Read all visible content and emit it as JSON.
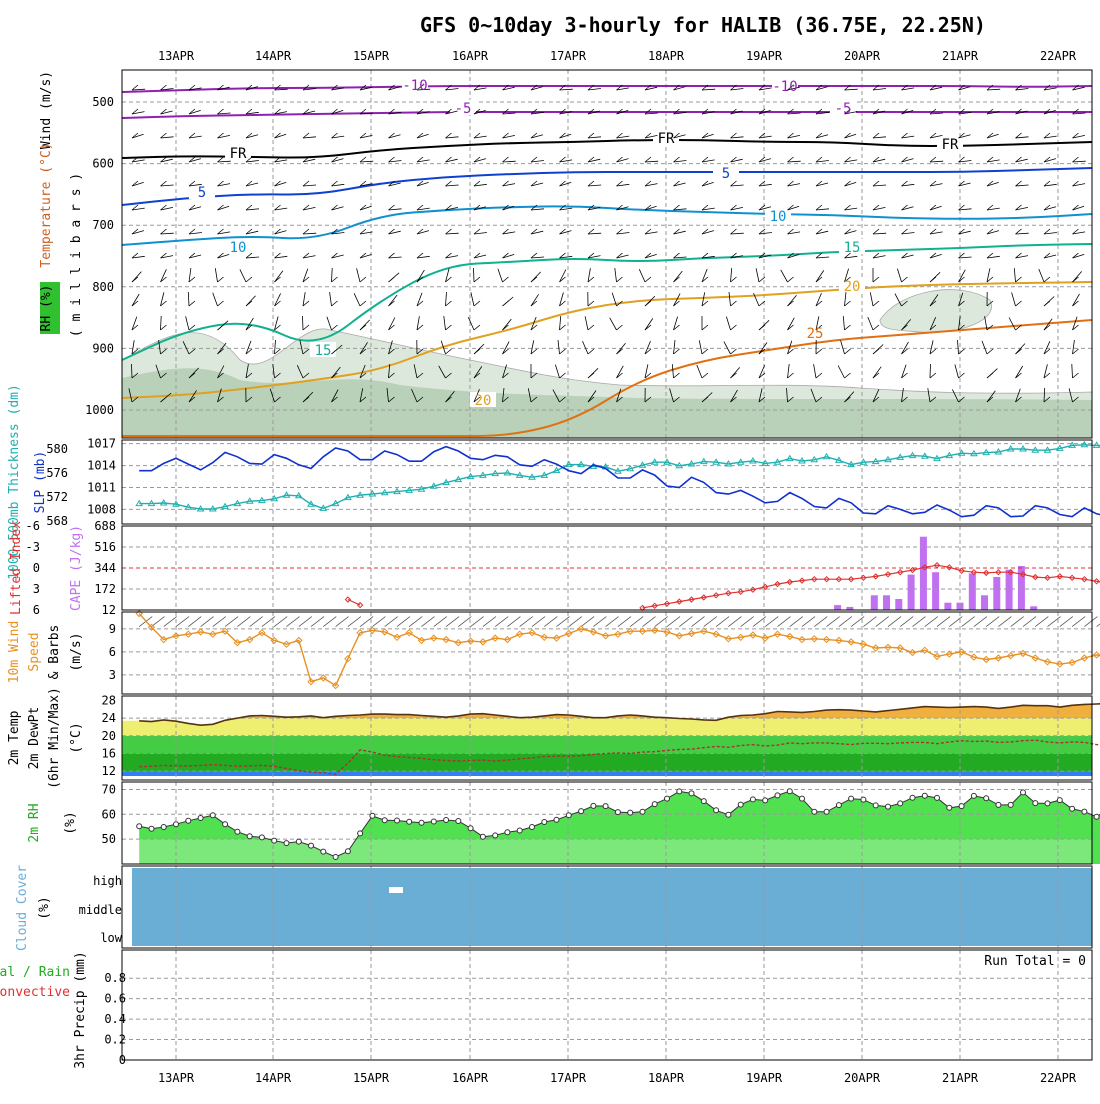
{
  "title": "GFS 0~10day 3-hourly for HALIB (36.75E, 22.25N)",
  "dates": [
    "13APR",
    "14APR",
    "15APR",
    "16APR",
    "17APR",
    "18APR",
    "19APR",
    "20APR",
    "21APR",
    "22APR"
  ],
  "colors": {
    "grid": "#9a9a9a",
    "slp": "#1030d0",
    "thickness": "#20b0b0",
    "lifted": "#e03030",
    "cape": "#c070f0",
    "wind": "#e89020",
    "rh_fill": "#50e050",
    "rh_fill_high": "#00e000",
    "cloud": "#6aaed6",
    "temp_fill": "#e89030"
  },
  "panels": {
    "upper": {
      "ylabel_wind": "Wind (m/s)",
      "ylabel_temp": "Temperature (°C)",
      "ylabel_rh": "RH (%)",
      "ylabel_mb": "( m i l l i b a r s )",
      "yticks": [
        "500",
        "600",
        "700",
        "800",
        "900",
        "1000"
      ],
      "contour_labels": [
        {
          "text": "-10",
          "color": "#9020b0"
        },
        {
          "text": "-10",
          "color": "#9020b0"
        },
        {
          "text": "-5",
          "color": "#9020b0"
        },
        {
          "text": "-5",
          "color": "#9020b0"
        },
        {
          "text": "FR",
          "color": "#000000"
        },
        {
          "text": "FR",
          "color": "#000000"
        },
        {
          "text": "FR",
          "color": "#000000"
        },
        {
          "text": "5",
          "color": "#1040d0"
        },
        {
          "text": "5",
          "color": "#1040d0"
        },
        {
          "text": "10",
          "color": "#1090d0"
        },
        {
          "text": "10",
          "color": "#1090d0"
        },
        {
          "text": "15",
          "color": "#10b090"
        },
        {
          "text": "15",
          "color": "#10b090"
        },
        {
          "text": "20",
          "color": "#e0a020"
        },
        {
          "text": "20",
          "color": "#e0a020"
        },
        {
          "text": "25",
          "color": "#e07010"
        }
      ]
    },
    "slp": {
      "ylabel_thk": "1000-500mb Thickness (dm)",
      "ylabel_slp": "SLP (mb)",
      "thk_ticks": [
        "580",
        "576",
        "572",
        "568"
      ],
      "slp_ticks": [
        "1017",
        "1014",
        "1011",
        "1008"
      ]
    },
    "cape": {
      "ylabel_li": "Lifted Index",
      "ylabel_cape": "CAPE (J/kg)",
      "li_ticks": [
        "-6",
        "-3",
        "0",
        "3",
        "6"
      ],
      "cape_ticks": [
        "688",
        "516",
        "344",
        "172",
        "12"
      ]
    },
    "wind": {
      "ylabel_1": "10m Wind",
      "ylabel_2": "Speed",
      "ylabel_3": "& Barbs",
      "ylabel_4": "(m/s)",
      "yticks": [
        "9",
        "6",
        "3"
      ]
    },
    "temp": {
      "ylabel_1": "2m Temp",
      "ylabel_2": "2m DewPt",
      "ylabel_3": "(6hr Min/Max)",
      "ylabel_4": "(°C)",
      "yticks": [
        "28",
        "24",
        "20",
        "16",
        "12"
      ]
    },
    "rh": {
      "ylabel": "2m RH",
      "yunit": "(%)",
      "yticks": [
        "70",
        "60",
        "50"
      ]
    },
    "cloud": {
      "ylabel": "Cloud Cover",
      "yunit": "(%)",
      "yticks": [
        "high",
        "middle",
        "low"
      ]
    },
    "precip": {
      "ylabel_1": "Total / Rain",
      "ylabel_2": "Convective",
      "ylabel_3": "3hr Precip (mm)",
      "yticks": [
        "0.8",
        "0.6",
        "0.4",
        "0.2",
        "0"
      ],
      "run_total": "Run Total = 0"
    }
  },
  "chart_data": {
    "type": "line",
    "x_start": "12APR 15Z",
    "x_step_hours": 3,
    "slp_mb": [
      1013.3,
      1013.3,
      1014.3,
      1015.0,
      1014.2,
      1013.4,
      1014.4,
      1015.8,
      1015.2,
      1014.3,
      1014.2,
      1015.5,
      1015.0,
      1014.1,
      1013.6,
      1015.2,
      1016.4,
      1016.0,
      1014.8,
      1014.8,
      1016.0,
      1015.5,
      1014.6,
      1014.6,
      1015.9,
      1016.6,
      1016.0,
      1015.0,
      1014.8,
      1015.4,
      1015.2,
      1014.1,
      1013.9,
      1014.8,
      1014.2,
      1013.3,
      1012.9,
      1014.1,
      1013.6,
      1012.3,
      1012.3,
      1013.4,
      1012.7,
      1011.2,
      1011.0,
      1012.4,
      1011.7,
      1010.3,
      1010.1,
      1010.6,
      1009.8,
      1008.9,
      1009.1,
      1010.3,
      1009.5,
      1008.4,
      1008.2,
      1009.5,
      1008.9,
      1007.5,
      1007.4,
      1008.5,
      1008.0,
      1007.4,
      1007.6,
      1008.6,
      1007.9,
      1007.0,
      1007.2,
      1008.5,
      1008.2,
      1007.0,
      1007.1,
      1008.5,
      1008.2,
      1007.3,
      1007.0,
      1008.2,
      1007.4,
      1007.0,
      1008.2
    ],
    "thickness_dm": [
      570.9,
      570.9,
      571.0,
      570.8,
      570.3,
      570.0,
      570.0,
      570.4,
      570.9,
      571.3,
      571.4,
      571.7,
      572.3,
      572.2,
      570.8,
      570.1,
      570.9,
      571.9,
      572.3,
      572.5,
      572.7,
      572.9,
      573.1,
      573.3,
      573.8,
      574.4,
      574.9,
      575.4,
      575.6,
      575.9,
      576.0,
      575.6,
      575.3,
      575.6,
      576.4,
      577.4,
      577.4,
      577.1,
      577.0,
      576.3,
      576.7,
      577.3,
      577.8,
      577.8,
      577.2,
      577.5,
      577.9,
      577.8,
      577.5,
      577.8,
      578.0,
      577.6,
      577.8,
      578.4,
      578.0,
      578.2,
      578.7,
      578.1,
      577.4,
      577.8,
      577.9,
      578.2,
      578.6,
      578.9,
      578.8,
      578.4,
      578.9,
      579.3,
      579.2,
      579.4,
      579.5,
      580.0,
      580.0,
      579.8,
      579.8,
      580.1,
      580.6,
      580.7,
      580.6,
      580.5,
      580.2
    ],
    "lifted_index": [
      7.6,
      7.6,
      7.6,
      7.6,
      7.6,
      7.6,
      7.6,
      7.6,
      7.6,
      7.6,
      7.6,
      7.6,
      7.6,
      7.6,
      7.6,
      7.6,
      7.6,
      4.5,
      5.3,
      7.6,
      7.6,
      7.6,
      7.6,
      7.6,
      7.6,
      7.6,
      7.6,
      7.6,
      7.6,
      7.6,
      7.6,
      7.6,
      7.6,
      7.6,
      7.6,
      7.6,
      7.6,
      7.6,
      7.6,
      7.6,
      7.6,
      5.7,
      5.4,
      5.1,
      4.8,
      4.5,
      4.2,
      3.9,
      3.6,
      3.4,
      3.1,
      2.7,
      2.3,
      2.0,
      1.8,
      1.6,
      1.6,
      1.6,
      1.6,
      1.4,
      1.2,
      0.9,
      0.6,
      0.3,
      -0.1,
      -0.4,
      -0.1,
      0.4,
      0.6,
      0.7,
      0.6,
      0.6,
      0.9,
      1.3,
      1.4,
      1.2,
      1.4,
      1.6,
      1.9,
      2.2,
      2.0
    ],
    "cape_jkg": [
      0,
      0,
      0,
      0,
      0,
      0,
      0,
      0,
      0,
      0,
      0,
      0,
      0,
      0,
      0,
      0,
      0,
      0,
      0,
      0,
      0,
      0,
      0,
      0,
      0,
      0,
      0,
      0,
      0,
      0,
      0,
      0,
      0,
      0,
      0,
      0,
      0,
      0,
      0,
      0,
      0,
      0,
      0,
      0,
      0,
      0,
      0,
      0,
      0,
      0,
      0,
      0,
      0,
      0,
      0,
      0,
      0,
      0,
      0,
      0,
      0,
      0,
      0,
      0,
      0,
      0,
      0,
      0,
      0,
      0,
      0,
      0,
      0,
      0,
      60,
      40,
      0,
      0,
      0,
      0,
      0
    ],
    "wind_speed_ms": [
      11.0,
      9.2,
      7.6,
      8.1,
      8.3,
      8.6,
      8.3,
      8.7,
      7.2,
      7.6,
      8.5,
      7.5,
      7.0,
      7.5,
      2.1,
      2.6,
      1.6,
      5.1,
      8.5,
      8.8,
      8.6,
      7.9,
      8.5,
      7.5,
      7.8,
      7.6,
      7.2,
      7.4,
      7.3,
      7.8,
      7.6,
      8.3,
      8.5,
      7.9,
      7.8,
      8.4,
      9.0,
      8.6,
      8.1,
      8.3,
      8.7,
      8.7,
      8.8,
      8.6,
      8.1,
      8.4,
      8.7,
      8.3,
      7.7,
      7.9,
      8.2,
      7.8,
      8.3,
      8.0,
      7.6,
      7.7,
      7.6,
      7.5,
      7.3,
      7.0,
      6.5,
      6.6,
      6.5,
      5.9,
      6.2,
      5.4,
      5.7,
      6.0,
      5.3,
      5.0,
      5.2,
      5.5,
      5.8,
      5.2,
      4.7,
      4.4,
      4.6,
      5.2,
      5.6,
      5.2,
      5.7
    ],
    "temp_c": [
      23.4,
      23.2,
      23.6,
      23.3,
      22.8,
      22.4,
      22.6,
      23.5,
      24.0,
      24.5,
      24.6,
      24.4,
      24.2,
      24.3,
      24.5,
      24.1,
      24.4,
      24.6,
      24.7,
      24.9,
      24.9,
      24.8,
      24.8,
      24.6,
      24.4,
      24.2,
      24.5,
      24.9,
      25.0,
      24.7,
      24.4,
      24.1,
      24.2,
      24.5,
      24.8,
      24.7,
      24.4,
      24.1,
      24.1,
      24.5,
      24.7,
      24.5,
      24.2,
      24.1,
      23.9,
      23.8,
      23.6,
      23.5,
      24.2,
      24.6,
      24.7,
      25.0,
      25.5,
      25.4,
      25.3,
      25.5,
      25.8,
      25.9,
      25.8,
      25.6,
      25.4,
      25.7,
      26.0,
      26.3,
      26.6,
      26.5,
      26.4,
      26.5,
      26.6,
      26.5,
      26.2,
      26.5,
      26.9,
      26.8,
      26.8,
      26.5,
      26.9,
      27.1,
      27.2,
      27.3,
      27.0
    ],
    "dewpoint_c": [
      13.0,
      13.1,
      13.3,
      13.2,
      13.2,
      13.3,
      13.5,
      13.3,
      13.1,
      13.2,
      13.3,
      13.1,
      12.6,
      12.1,
      11.8,
      11.6,
      11.3,
      13.8,
      16.8,
      16.3,
      15.6,
      15.3,
      15.1,
      14.9,
      14.6,
      14.4,
      14.3,
      14.4,
      14.5,
      14.3,
      14.5,
      14.8,
      15.0,
      15.3,
      15.4,
      15.4,
      15.5,
      15.8,
      16.0,
      16.1,
      16.0,
      16.3,
      16.4,
      16.7,
      16.9,
      17.0,
      17.3,
      17.6,
      17.4,
      17.8,
      18.0,
      17.7,
      17.9,
      18.4,
      18.2,
      18.4,
      18.4,
      18.2,
      18.0,
      18.3,
      18.3,
      18.2,
      18.4,
      18.5,
      18.5,
      18.2,
      18.6,
      18.9,
      18.7,
      18.8,
      18.5,
      18.6,
      18.9,
      19.0,
      18.6,
      18.4,
      18.6,
      18.5,
      18.0,
      17.8,
      17.6
    ],
    "rh_pct": [
      55.2,
      54.2,
      54.9,
      56.0,
      57.4,
      58.5,
      59.6,
      56.0,
      53.0,
      51.2,
      50.7,
      49.4,
      48.4,
      49.0,
      47.4,
      45.0,
      42.8,
      45.1,
      52.3,
      59.4,
      57.6,
      57.5,
      57.0,
      56.6,
      57.1,
      57.7,
      57.3,
      54.4,
      51.0,
      51.5,
      52.8,
      53.5,
      54.9,
      56.9,
      57.8,
      59.6,
      61.3,
      63.4,
      63.3,
      60.9,
      60.7,
      61.0,
      64.1,
      66.3,
      69.2,
      68.4,
      65.3,
      61.6,
      59.8,
      63.9,
      66.0,
      65.6,
      67.6,
      69.3,
      66.3,
      61.0,
      61.0,
      63.7,
      66.3,
      65.9,
      63.6,
      63.1,
      64.4,
      66.7,
      67.5,
      66.6,
      62.6,
      63.3,
      67.4,
      66.5,
      63.8,
      63.8,
      68.8,
      64.5,
      64.4,
      65.7,
      62.2,
      61.1,
      59.0,
      62.5,
      51.8
    ],
    "precip_mm": [
      0,
      0,
      0,
      0,
      0,
      0,
      0,
      0,
      0,
      0,
      0,
      0,
      0,
      0,
      0,
      0,
      0,
      0,
      0,
      0,
      0,
      0,
      0,
      0,
      0,
      0,
      0,
      0,
      0,
      0,
      0,
      0,
      0,
      0,
      0,
      0,
      0,
      0,
      0,
      0,
      0,
      0,
      0,
      0,
      0,
      0,
      0,
      0,
      0,
      0,
      0,
      0,
      0,
      0,
      0,
      0,
      0,
      0,
      0,
      0,
      0,
      0,
      0,
      0,
      0,
      0,
      0,
      0,
      0,
      0,
      0,
      0,
      0,
      0,
      0,
      0,
      0,
      0,
      0,
      0,
      0
    ],
    "cape_bars_jkg": [
      {
        "day": "17APR",
        "h": 3,
        "v": 0
      },
      {
        "day": "19APR",
        "h": 18,
        "v": 40
      },
      {
        "day": "19APR",
        "h": 21,
        "v": 25
      },
      {
        "day": "20APR",
        "h": 3,
        "v": 120
      },
      {
        "day": "20APR",
        "h": 6,
        "v": 120
      },
      {
        "day": "20APR",
        "h": 9,
        "v": 90
      },
      {
        "day": "20APR",
        "h": 12,
        "v": 290
      },
      {
        "day": "20APR",
        "h": 15,
        "v": 600
      },
      {
        "day": "20APR",
        "h": 18,
        "v": 310
      },
      {
        "day": "20APR",
        "h": 21,
        "v": 60
      },
      {
        "day": "21APR",
        "h": 0,
        "v": 60
      },
      {
        "day": "21APR",
        "h": 3,
        "v": 300
      },
      {
        "day": "21APR",
        "h": 6,
        "v": 120
      },
      {
        "day": "21APR",
        "h": 9,
        "v": 270
      },
      {
        "day": "21APR",
        "h": 12,
        "v": 330
      },
      {
        "day": "21APR",
        "h": 15,
        "v": 360
      },
      {
        "day": "21APR",
        "h": 18,
        "v": 30
      }
    ]
  }
}
